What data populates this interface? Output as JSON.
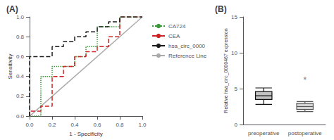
{
  "chart_data": [
    {
      "type": "step",
      "title": "(A)",
      "xlabel": "1 - Specificity",
      "ylabel": "Sensitivity",
      "xlim": [
        0.0,
        1.0
      ],
      "ylim": [
        0.0,
        1.0
      ],
      "xticks": [
        {
          "value": 0.0,
          "label": "0.0"
        },
        0.2,
        0.4,
        0.6,
        0.8,
        {
          "value": 1.0,
          "label": "1.0"
        }
      ],
      "yticks": [
        {
          "value": 0.0,
          "label": "0.0"
        },
        0.2,
        0.4,
        0.6,
        0.8,
        {
          "value": 1.0,
          "label": "1.0"
        }
      ],
      "grid": false,
      "legend": "upper right",
      "series": [
        {
          "name": "CA724",
          "color": "#3a9a3a",
          "line_style": "dotted",
          "x": [
            0.0,
            0.1,
            0.1,
            0.2,
            0.2,
            0.4,
            0.4,
            0.5,
            0.5,
            0.6,
            0.6,
            0.8,
            0.8,
            1.0
          ],
          "values": [
            0.0,
            0.0,
            0.4,
            0.4,
            0.5,
            0.5,
            0.6,
            0.6,
            0.7,
            0.7,
            0.9,
            0.9,
            1.0,
            1.0
          ]
        },
        {
          "name": "CEA",
          "color": "#cc2222",
          "line_style": "dashed",
          "x": [
            0.0,
            0.0,
            0.1,
            0.1,
            0.2,
            0.2,
            0.3,
            0.3,
            0.4,
            0.4,
            0.5,
            0.5,
            0.6,
            0.6,
            0.7,
            0.7,
            0.8,
            0.8,
            1.0
          ],
          "values": [
            0.0,
            0.05,
            0.05,
            0.1,
            0.1,
            0.4,
            0.4,
            0.5,
            0.5,
            0.6,
            0.6,
            0.65,
            0.65,
            0.7,
            0.7,
            0.8,
            0.8,
            1.0,
            1.0
          ]
        },
        {
          "name": "hsa_circ_0000",
          "color": "#1a1a1a",
          "line_style": "dashed",
          "x": [
            0.0,
            0.0,
            0.2,
            0.2,
            0.3,
            0.3,
            0.4,
            0.4,
            0.5,
            0.5,
            0.6,
            0.6,
            0.7,
            0.7,
            0.8,
            0.8,
            1.0
          ],
          "values": [
            0.0,
            0.6,
            0.6,
            0.7,
            0.7,
            0.75,
            0.75,
            0.8,
            0.8,
            0.85,
            0.85,
            0.9,
            0.9,
            0.95,
            0.95,
            1.0,
            1.0
          ]
        },
        {
          "name": "Reference Line",
          "color": "#aaaaaa",
          "line_style": "solid",
          "type": "line",
          "x": [
            0,
            1
          ],
          "values": [
            0,
            1
          ]
        }
      ]
    },
    {
      "type": "boxplot",
      "title": "(B)",
      "ylabel": "Relative hsa_circ_0000467 expression",
      "categories": [
        "preoperative",
        "postoperative"
      ],
      "ylim": [
        0,
        15
      ],
      "yticks": [
        0,
        5,
        10,
        15
      ],
      "grid": false,
      "values": [
        [
          2.8,
          3.5,
          4.0,
          4.6,
          5.1
        ],
        [
          1.8,
          2.1,
          2.5,
          2.95,
          3.2
        ]
      ],
      "colors": [
        "#111111",
        "#555555"
      ],
      "annotations": [
        {
          "text": "*",
          "x": "postoperative",
          "y": 6.2
        }
      ]
    }
  ]
}
